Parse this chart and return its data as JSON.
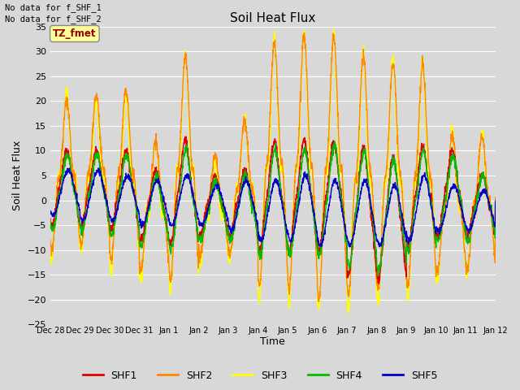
{
  "title": "Soil Heat Flux",
  "xlabel": "Time",
  "ylabel": "Soil Heat Flux",
  "ylim": [
    -25,
    35
  ],
  "yticks": [
    -25,
    -20,
    -15,
    -10,
    -5,
    0,
    5,
    10,
    15,
    20,
    25,
    30,
    35
  ],
  "background_color": "#d8d8d8",
  "plot_bg_color": "#d8d8d8",
  "grid_color": "#ffffff",
  "annotation_text1": "No data for f_SHF_1",
  "annotation_text2": "No data for f_SHF_2",
  "tz_label": "TZ_fmet",
  "tz_bg": "#ffff99",
  "tz_border": "#aaaaaa",
  "tz_color": "#990000",
  "series_colors": {
    "SHF1": "#dd0000",
    "SHF2": "#ff8800",
    "SHF3": "#ffff00",
    "SHF4": "#00bb00",
    "SHF5": "#0000cc"
  },
  "xtick_labels": [
    "Dec 28",
    "Dec 29",
    "Dec 30",
    "Dec 31",
    "Jan 1",
    "Jan 2",
    "Jan 3",
    "Jan 4",
    "Jan 5",
    "Jan 6",
    "Jan 7",
    "Jan 8",
    "Jan 9",
    "Jan 10",
    "Jan 11",
    "Jan 12"
  ],
  "n_days": 15,
  "pts_per_day": 144
}
